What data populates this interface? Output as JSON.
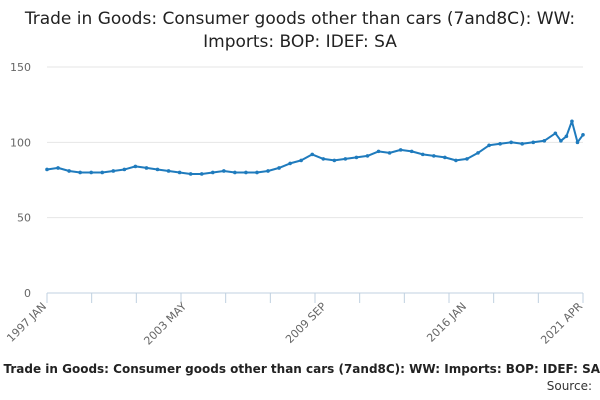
{
  "chart_data": {
    "type": "line",
    "title": "Trade in Goods: Consumer goods other than cars (7and8C): WW: Imports: BOP: IDEF: SA",
    "caption": "Trade in Goods: Consumer goods other than cars (7and8C): WW: Imports: BOP: IDEF: SA",
    "source_label": "Source:",
    "xlabel": "",
    "ylabel": "",
    "ylim": [
      0,
      150
    ],
    "y_ticks": [
      0,
      50,
      100,
      150
    ],
    "x_range": [
      "1997-01",
      "2021-04"
    ],
    "x_ticks": [
      {
        "label": "1997 JAN",
        "date": "1997-01"
      },
      {
        "label": "2003 MAY",
        "date": "2003-05"
      },
      {
        "label": "2009 SEP",
        "date": "2009-09"
      },
      {
        "label": "2016 JAN",
        "date": "2016-01"
      },
      {
        "label": "2021 APR",
        "date": "2021-04"
      }
    ],
    "grid": true,
    "legend": "none",
    "series": [
      {
        "color": "#1f7bbd",
        "points": [
          [
            "1997-01",
            82
          ],
          [
            "1997-07",
            83
          ],
          [
            "1998-01",
            81
          ],
          [
            "1998-07",
            80
          ],
          [
            "1999-01",
            80
          ],
          [
            "1999-07",
            80
          ],
          [
            "2000-01",
            81
          ],
          [
            "2000-07",
            82
          ],
          [
            "2001-01",
            84
          ],
          [
            "2001-07",
            83
          ],
          [
            "2002-01",
            82
          ],
          [
            "2002-07",
            81
          ],
          [
            "2003-01",
            80
          ],
          [
            "2003-07",
            79
          ],
          [
            "2004-01",
            79
          ],
          [
            "2004-07",
            80
          ],
          [
            "2005-01",
            81
          ],
          [
            "2005-07",
            80
          ],
          [
            "2006-01",
            80
          ],
          [
            "2006-07",
            80
          ],
          [
            "2007-01",
            81
          ],
          [
            "2007-07",
            83
          ],
          [
            "2008-01",
            86
          ],
          [
            "2008-07",
            88
          ],
          [
            "2009-01",
            92
          ],
          [
            "2009-07",
            89
          ],
          [
            "2010-01",
            88
          ],
          [
            "2010-07",
            89
          ],
          [
            "2011-01",
            90
          ],
          [
            "2011-07",
            91
          ],
          [
            "2012-01",
            94
          ],
          [
            "2012-07",
            93
          ],
          [
            "2013-01",
            95
          ],
          [
            "2013-07",
            94
          ],
          [
            "2014-01",
            92
          ],
          [
            "2014-07",
            91
          ],
          [
            "2015-01",
            90
          ],
          [
            "2015-07",
            88
          ],
          [
            "2016-01",
            89
          ],
          [
            "2016-07",
            93
          ],
          [
            "2017-01",
            98
          ],
          [
            "2017-07",
            99
          ],
          [
            "2018-01",
            100
          ],
          [
            "2018-07",
            99
          ],
          [
            "2019-01",
            100
          ],
          [
            "2019-07",
            101
          ],
          [
            "2020-01",
            106
          ],
          [
            "2020-04",
            101
          ],
          [
            "2020-07",
            104
          ],
          [
            "2020-10",
            114
          ],
          [
            "2021-01",
            100
          ],
          [
            "2021-04",
            105
          ]
        ]
      }
    ]
  }
}
